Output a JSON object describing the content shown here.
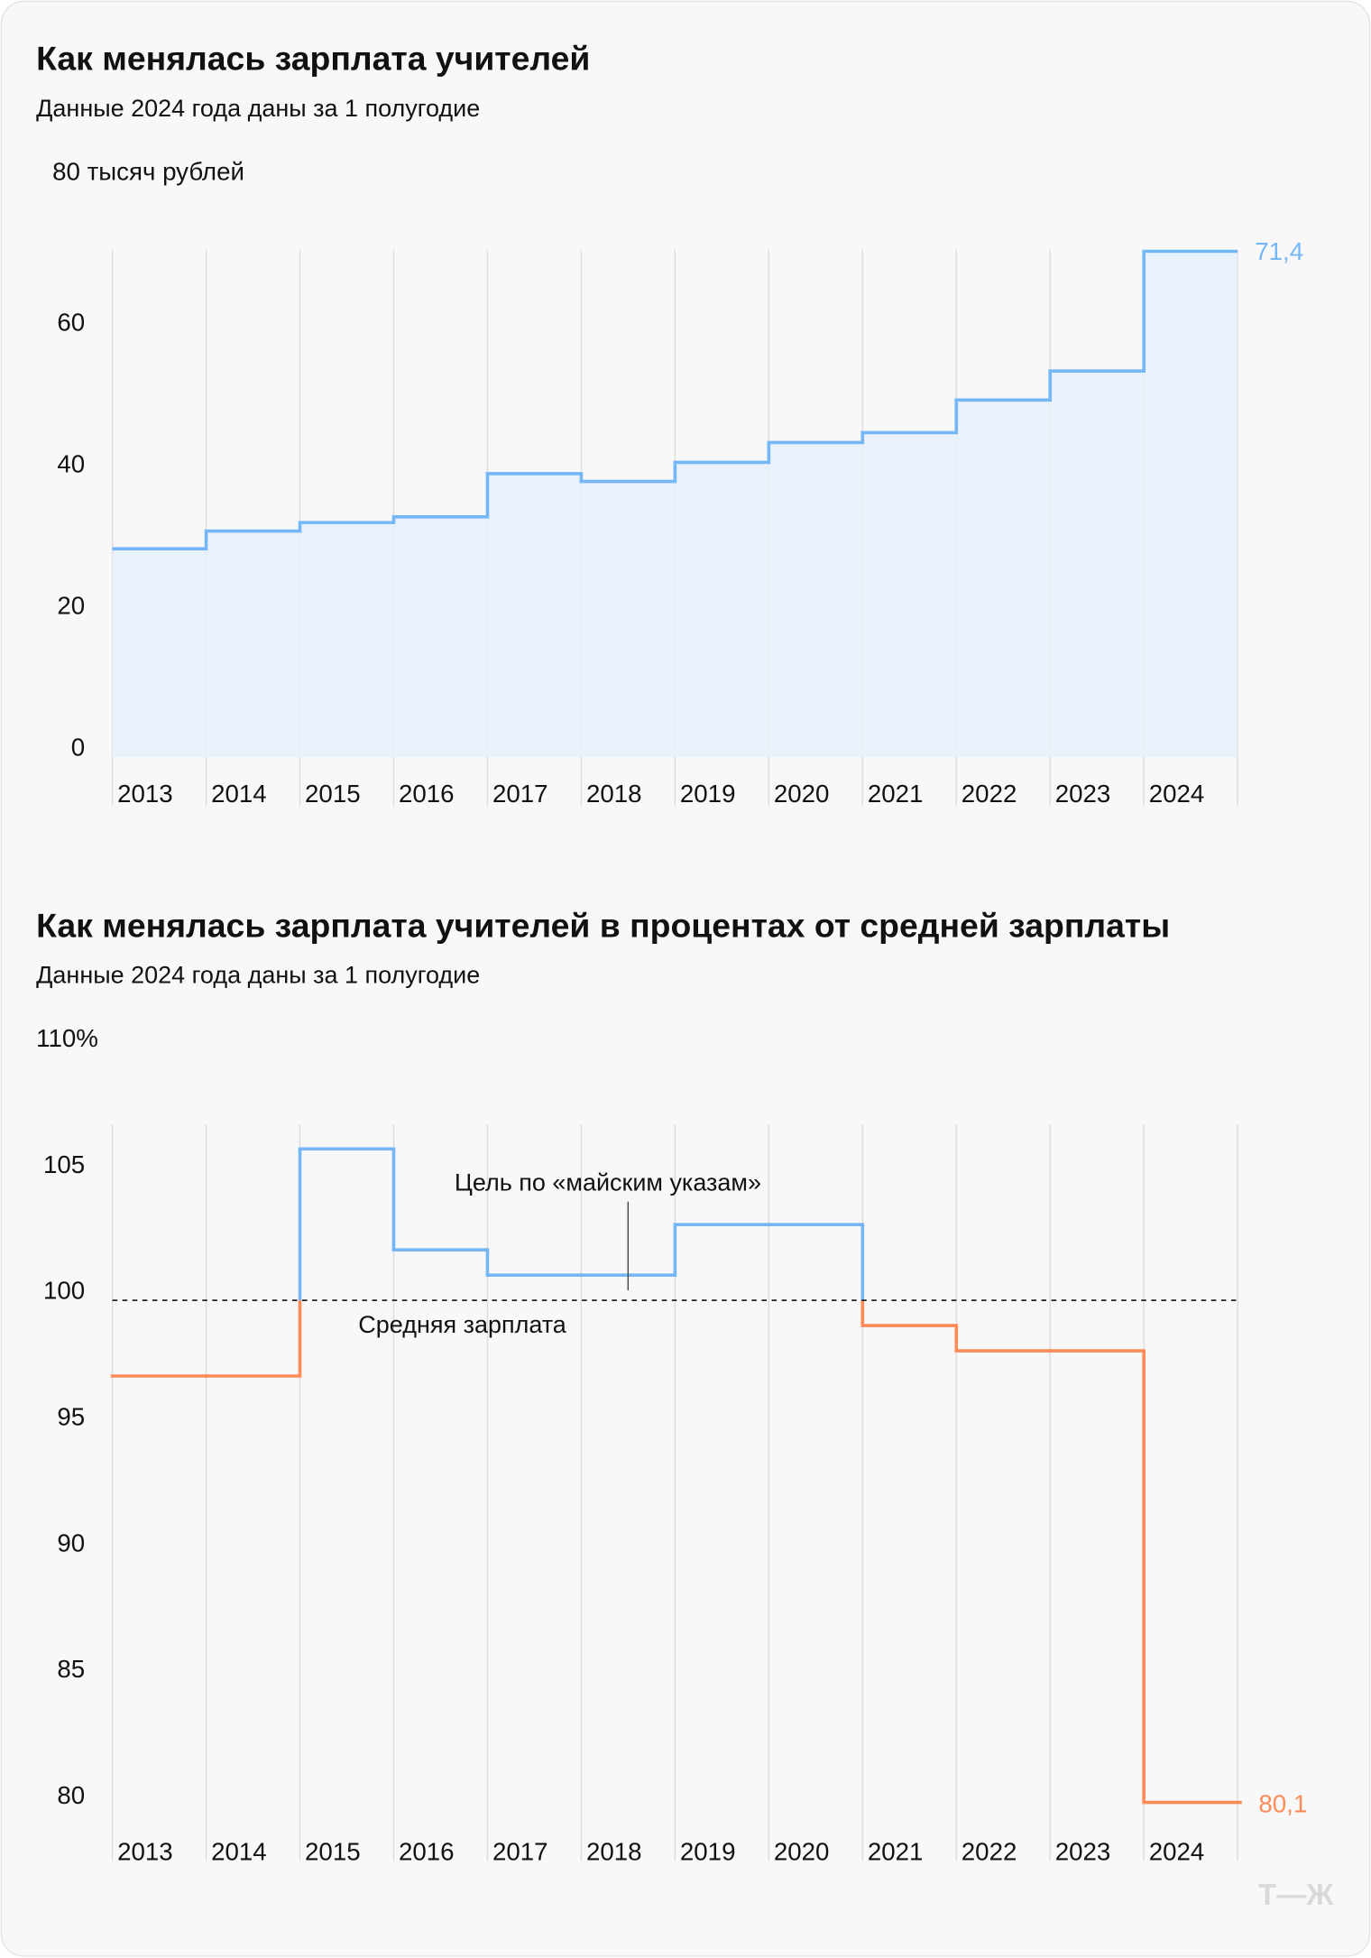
{
  "colors": {
    "blue": "#74b6f6",
    "blue_fill": "#e6f0fa",
    "orange": "#ff8b59",
    "grid": "#dcdcdc",
    "background": "#f8f8f8"
  },
  "logo": "Т—Ж",
  "chart_data": [
    {
      "type": "area",
      "step": true,
      "title": "Как менялась зарплата учителей",
      "subtitle": "Данные 2024 года даны за 1 полугодие",
      "ylabel": "80 тысяч рублей",
      "ylim": [
        0,
        80
      ],
      "yticks": [
        "0",
        "20",
        "40",
        "60"
      ],
      "categories": [
        "2013",
        "2014",
        "2015",
        "2016",
        "2017",
        "2018",
        "2019",
        "2020",
        "2021",
        "2022",
        "2023",
        "2024"
      ],
      "values": [
        29.4,
        31.9,
        33.1,
        33.9,
        40.0,
        38.9,
        41.6,
        44.4,
        45.8,
        50.4,
        54.5,
        71.4
      ],
      "end_label": "71,4",
      "grid": "vertical"
    },
    {
      "type": "line",
      "step": true,
      "title": "Как менялась зарплата учителей в процентах от средней зарплаты",
      "subtitle": "Данные 2024 года даны за 1 полугодие",
      "ylabel": "110%",
      "ylim": [
        78,
        110
      ],
      "yticks": [
        "80",
        "85",
        "90",
        "95",
        "100",
        "105"
      ],
      "categories": [
        "2013",
        "2014",
        "2015",
        "2016",
        "2017",
        "2018",
        "2019",
        "2020",
        "2021",
        "2022",
        "2023",
        "2024"
      ],
      "values": [
        97.0,
        97.0,
        106.0,
        102.0,
        101.0,
        101.0,
        103.0,
        103.0,
        99.0,
        98.0,
        98.0,
        80.1
      ],
      "end_label": "80,1",
      "reference_line": {
        "value": 100,
        "label": "Средняя зарплата",
        "style": "dashed"
      },
      "annotation": "Цель по «майским указам»",
      "grid": "vertical"
    }
  ]
}
